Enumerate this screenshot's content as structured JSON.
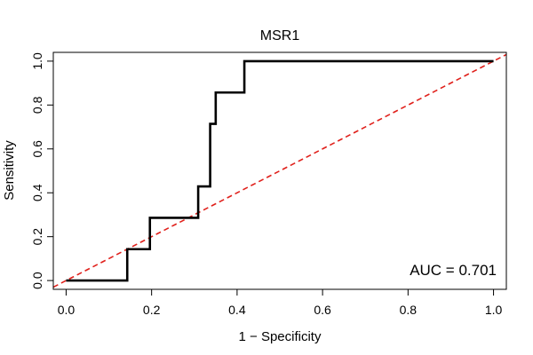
{
  "chart_data": {
    "type": "line",
    "title": "MSR1",
    "xlabel": "1 − Specificity",
    "ylabel": "Sensitivity",
    "xlim": [
      -0.03,
      1.03
    ],
    "ylim": [
      -0.04,
      1.04
    ],
    "x_ticks": [
      0.0,
      0.2,
      0.4,
      0.6,
      0.8,
      1.0
    ],
    "x_tick_labels": [
      "0.0",
      "0.2",
      "0.4",
      "0.6",
      "0.8",
      "1.0"
    ],
    "y_ticks": [
      0.0,
      0.2,
      0.4,
      0.6,
      0.8,
      1.0
    ],
    "y_tick_labels": [
      "0.0",
      "0.2",
      "0.4",
      "0.6",
      "0.8",
      "1.0"
    ],
    "annotation": "AUC = 0.701",
    "grid": false,
    "series": [
      {
        "name": "ROC curve",
        "color": "#000000",
        "style": "solid",
        "x": [
          0.0,
          0.143,
          0.143,
          0.196,
          0.196,
          0.309,
          0.309,
          0.337,
          0.337,
          0.35,
          0.35,
          0.417,
          0.417,
          1.0
        ],
        "y": [
          0.0,
          0.0,
          0.143,
          0.143,
          0.286,
          0.286,
          0.429,
          0.429,
          0.714,
          0.714,
          0.857,
          0.857,
          1.0,
          1.0
        ]
      },
      {
        "name": "chance line",
        "color": "#e0201b",
        "style": "dashed",
        "x": [
          -0.03,
          1.03
        ],
        "y": [
          -0.03,
          1.03
        ]
      }
    ]
  }
}
